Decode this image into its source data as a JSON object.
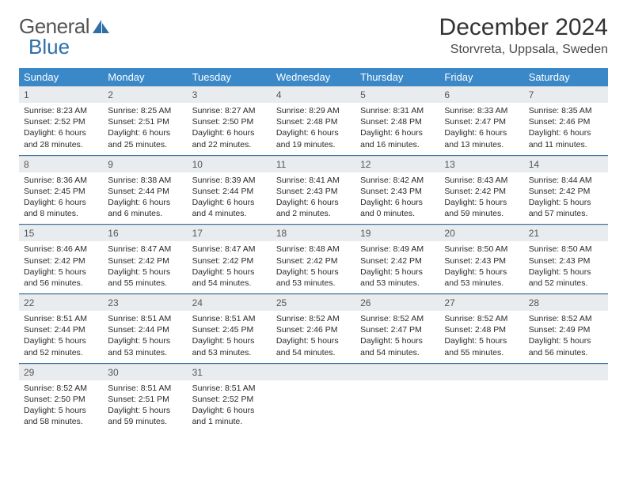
{
  "logo": {
    "text_gray": "General",
    "text_blue": "Blue"
  },
  "header": {
    "month_title": "December 2024",
    "location": "Storvreta, Uppsala, Sweden"
  },
  "colors": {
    "header_bg": "#3a88c8",
    "header_text": "#ffffff",
    "daynum_bg": "#e9ecef",
    "border": "#2f6fa8",
    "logo_blue": "#2f6fa8"
  },
  "weekdays": [
    "Sunday",
    "Monday",
    "Tuesday",
    "Wednesday",
    "Thursday",
    "Friday",
    "Saturday"
  ],
  "days": [
    {
      "n": "1",
      "sunrise": "Sunrise: 8:23 AM",
      "sunset": "Sunset: 2:52 PM",
      "daylight": "Daylight: 6 hours and 28 minutes."
    },
    {
      "n": "2",
      "sunrise": "Sunrise: 8:25 AM",
      "sunset": "Sunset: 2:51 PM",
      "daylight": "Daylight: 6 hours and 25 minutes."
    },
    {
      "n": "3",
      "sunrise": "Sunrise: 8:27 AM",
      "sunset": "Sunset: 2:50 PM",
      "daylight": "Daylight: 6 hours and 22 minutes."
    },
    {
      "n": "4",
      "sunrise": "Sunrise: 8:29 AM",
      "sunset": "Sunset: 2:48 PM",
      "daylight": "Daylight: 6 hours and 19 minutes."
    },
    {
      "n": "5",
      "sunrise": "Sunrise: 8:31 AM",
      "sunset": "Sunset: 2:48 PM",
      "daylight": "Daylight: 6 hours and 16 minutes."
    },
    {
      "n": "6",
      "sunrise": "Sunrise: 8:33 AM",
      "sunset": "Sunset: 2:47 PM",
      "daylight": "Daylight: 6 hours and 13 minutes."
    },
    {
      "n": "7",
      "sunrise": "Sunrise: 8:35 AM",
      "sunset": "Sunset: 2:46 PM",
      "daylight": "Daylight: 6 hours and 11 minutes."
    },
    {
      "n": "8",
      "sunrise": "Sunrise: 8:36 AM",
      "sunset": "Sunset: 2:45 PM",
      "daylight": "Daylight: 6 hours and 8 minutes."
    },
    {
      "n": "9",
      "sunrise": "Sunrise: 8:38 AM",
      "sunset": "Sunset: 2:44 PM",
      "daylight": "Daylight: 6 hours and 6 minutes."
    },
    {
      "n": "10",
      "sunrise": "Sunrise: 8:39 AM",
      "sunset": "Sunset: 2:44 PM",
      "daylight": "Daylight: 6 hours and 4 minutes."
    },
    {
      "n": "11",
      "sunrise": "Sunrise: 8:41 AM",
      "sunset": "Sunset: 2:43 PM",
      "daylight": "Daylight: 6 hours and 2 minutes."
    },
    {
      "n": "12",
      "sunrise": "Sunrise: 8:42 AM",
      "sunset": "Sunset: 2:43 PM",
      "daylight": "Daylight: 6 hours and 0 minutes."
    },
    {
      "n": "13",
      "sunrise": "Sunrise: 8:43 AM",
      "sunset": "Sunset: 2:42 PM",
      "daylight": "Daylight: 5 hours and 59 minutes."
    },
    {
      "n": "14",
      "sunrise": "Sunrise: 8:44 AM",
      "sunset": "Sunset: 2:42 PM",
      "daylight": "Daylight: 5 hours and 57 minutes."
    },
    {
      "n": "15",
      "sunrise": "Sunrise: 8:46 AM",
      "sunset": "Sunset: 2:42 PM",
      "daylight": "Daylight: 5 hours and 56 minutes."
    },
    {
      "n": "16",
      "sunrise": "Sunrise: 8:47 AM",
      "sunset": "Sunset: 2:42 PM",
      "daylight": "Daylight: 5 hours and 55 minutes."
    },
    {
      "n": "17",
      "sunrise": "Sunrise: 8:47 AM",
      "sunset": "Sunset: 2:42 PM",
      "daylight": "Daylight: 5 hours and 54 minutes."
    },
    {
      "n": "18",
      "sunrise": "Sunrise: 8:48 AM",
      "sunset": "Sunset: 2:42 PM",
      "daylight": "Daylight: 5 hours and 53 minutes."
    },
    {
      "n": "19",
      "sunrise": "Sunrise: 8:49 AM",
      "sunset": "Sunset: 2:42 PM",
      "daylight": "Daylight: 5 hours and 53 minutes."
    },
    {
      "n": "20",
      "sunrise": "Sunrise: 8:50 AM",
      "sunset": "Sunset: 2:43 PM",
      "daylight": "Daylight: 5 hours and 53 minutes."
    },
    {
      "n": "21",
      "sunrise": "Sunrise: 8:50 AM",
      "sunset": "Sunset: 2:43 PM",
      "daylight": "Daylight: 5 hours and 52 minutes."
    },
    {
      "n": "22",
      "sunrise": "Sunrise: 8:51 AM",
      "sunset": "Sunset: 2:44 PM",
      "daylight": "Daylight: 5 hours and 52 minutes."
    },
    {
      "n": "23",
      "sunrise": "Sunrise: 8:51 AM",
      "sunset": "Sunset: 2:44 PM",
      "daylight": "Daylight: 5 hours and 53 minutes."
    },
    {
      "n": "24",
      "sunrise": "Sunrise: 8:51 AM",
      "sunset": "Sunset: 2:45 PM",
      "daylight": "Daylight: 5 hours and 53 minutes."
    },
    {
      "n": "25",
      "sunrise": "Sunrise: 8:52 AM",
      "sunset": "Sunset: 2:46 PM",
      "daylight": "Daylight: 5 hours and 54 minutes."
    },
    {
      "n": "26",
      "sunrise": "Sunrise: 8:52 AM",
      "sunset": "Sunset: 2:47 PM",
      "daylight": "Daylight: 5 hours and 54 minutes."
    },
    {
      "n": "27",
      "sunrise": "Sunrise: 8:52 AM",
      "sunset": "Sunset: 2:48 PM",
      "daylight": "Daylight: 5 hours and 55 minutes."
    },
    {
      "n": "28",
      "sunrise": "Sunrise: 8:52 AM",
      "sunset": "Sunset: 2:49 PM",
      "daylight": "Daylight: 5 hours and 56 minutes."
    },
    {
      "n": "29",
      "sunrise": "Sunrise: 8:52 AM",
      "sunset": "Sunset: 2:50 PM",
      "daylight": "Daylight: 5 hours and 58 minutes."
    },
    {
      "n": "30",
      "sunrise": "Sunrise: 8:51 AM",
      "sunset": "Sunset: 2:51 PM",
      "daylight": "Daylight: 5 hours and 59 minutes."
    },
    {
      "n": "31",
      "sunrise": "Sunrise: 8:51 AM",
      "sunset": "Sunset: 2:52 PM",
      "daylight": "Daylight: 6 hours and 1 minute."
    }
  ]
}
